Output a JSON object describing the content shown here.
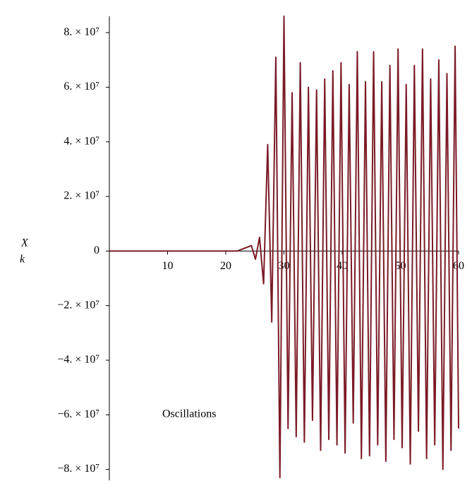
{
  "chart_data": {
    "type": "line",
    "ylabel": "X",
    "ylabel_subscript": "k",
    "annotation": "Oscillations",
    "x": [
      0,
      22,
      24.4,
      25.1,
      25.8,
      26.5,
      27.2,
      27.9,
      28.6,
      29.3,
      30,
      30.7,
      31.4,
      32.1,
      32.8,
      33.5,
      34.2,
      34.9,
      35.6,
      36.3,
      37,
      37.7,
      38.4,
      39.1,
      39.8,
      40.5,
      41.2,
      41.9,
      42.6,
      43.3,
      44,
      44.7,
      45.4,
      46.1,
      46.8,
      47.5,
      48.2,
      48.9,
      49.6,
      50.3,
      51,
      51.7,
      52.4,
      53.1,
      53.8,
      54.5,
      55.2,
      55.9,
      56.6,
      57.3,
      58,
      58.7,
      59.4,
      60
    ],
    "series": [
      {
        "color": "#7b1a26",
        "values": [
          0,
          0,
          2000000.0,
          -3000000.0,
          5000000.0,
          -12000000.0,
          39000000.0,
          -26000000.0,
          71000000.0,
          -83000000.0,
          86000000.0,
          -65000000.0,
          58000000.0,
          -68000000.0,
          69000000.0,
          -70000000.0,
          60000000.0,
          -62000000.0,
          59000000.0,
          -73000000.0,
          63000000.0,
          -69000000.0,
          66000000.0,
          -71000000.0,
          69000000.0,
          -74000000.0,
          61000000.0,
          -63000000.0,
          73000000.0,
          -76000000.0,
          62000000.0,
          -75000000.0,
          73000000.0,
          -71000000.0,
          62000000.0,
          -77000000.0,
          68000000.0,
          -69000000.0,
          74000000.0,
          -72000000.0,
          61000000.0,
          -78000000.0,
          68000000.0,
          -66000000.0,
          74000000.0,
          -76000000.0,
          63000000.0,
          -71000000.0,
          70000000.0,
          -80000000.0,
          65000000.0,
          -73000000.0,
          75000000.0,
          -65000000.0
        ]
      }
    ],
    "xlim": [
      0,
      60
    ],
    "xticks": [
      10,
      20,
      30,
      40,
      50,
      60
    ],
    "ylim": [
      -84000000.0,
      86000000.0
    ],
    "yticks": [
      {
        "value": 80000000,
        "label": "8. × 10⁷"
      },
      {
        "value": 60000000,
        "label": "6. × 10⁷"
      },
      {
        "value": 40000000,
        "label": "4. × 10⁷"
      },
      {
        "value": 20000000,
        "label": "2. × 10⁷"
      },
      0,
      {
        "value": -20000000,
        "label": "−2. × 10⁷"
      },
      {
        "value": -40000000,
        "label": "−4. × 10⁷"
      },
      {
        "value": -60000000,
        "label": "−6. × 10⁷"
      },
      {
        "value": -80000000,
        "label": "−8. × 10⁷"
      }
    ],
    "grid": false
  }
}
